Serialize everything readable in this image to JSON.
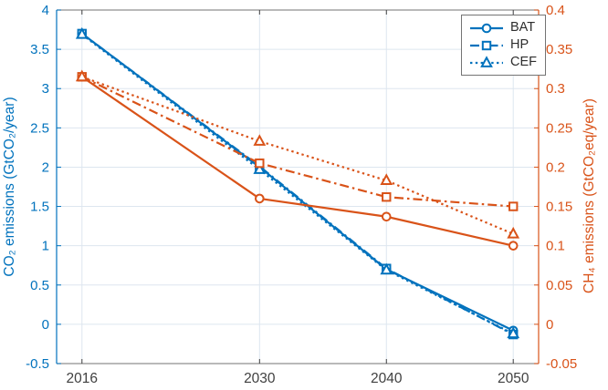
{
  "colors": {
    "left_axis": "#0072BD",
    "right_axis": "#D95319",
    "grid": "#dde6ef",
    "frame": "#8f8f8f",
    "x_tick": "#404040",
    "marker_fill": "#ffffff",
    "legend_border": "#747474",
    "background": "#ffffff"
  },
  "chart_data": {
    "type": "line",
    "x": [
      2016,
      2030,
      2040,
      2050
    ],
    "xlim": [
      2014,
      2052
    ],
    "x_ticks": [
      2016,
      2030,
      2040,
      2050
    ],
    "x_tick_labels": [
      "2016",
      "2030",
      "2040",
      "2050"
    ],
    "grid": true,
    "left_axis": {
      "label": "CO₂ emissions (GtCO₂/year)",
      "lim": [
        -0.5,
        4
      ],
      "ticks": [
        -0.5,
        0,
        0.5,
        1,
        1.5,
        2,
        2.5,
        3,
        3.5,
        4
      ],
      "color": "#0072BD"
    },
    "right_axis": {
      "label": "CH₄ emissions (GtCO₂eq/year)",
      "lim": [
        -0.05,
        0.4
      ],
      "ticks": [
        -0.05,
        0,
        0.05,
        0.1,
        0.15,
        0.2,
        0.25,
        0.3,
        0.35,
        0.4
      ],
      "color": "#D95319"
    },
    "series": [
      {
        "name": "BAT",
        "axis": "left",
        "quantity": "CO2 emissions",
        "line": "solid",
        "marker": "circle",
        "values": [
          3.7,
          2.0,
          0.7,
          -0.08
        ]
      },
      {
        "name": "HP",
        "axis": "left",
        "quantity": "CO2 emissions",
        "line": "dashdot",
        "marker": "square",
        "values": [
          3.7,
          2.01,
          0.71,
          -0.13
        ]
      },
      {
        "name": "CEF",
        "axis": "left",
        "quantity": "CO2 emissions",
        "line": "dotted",
        "marker": "triangle",
        "values": [
          3.69,
          1.97,
          0.69,
          -0.12
        ]
      },
      {
        "name": "BAT",
        "axis": "right",
        "quantity": "CH4 emissions",
        "line": "solid",
        "marker": "circle",
        "values": [
          0.315,
          0.16,
          0.137,
          0.1
        ]
      },
      {
        "name": "HP",
        "axis": "right",
        "quantity": "CH4 emissions",
        "line": "dashdot",
        "marker": "square",
        "values": [
          0.315,
          0.205,
          0.162,
          0.15
        ]
      },
      {
        "name": "CEF",
        "axis": "right",
        "quantity": "CH4 emissions",
        "line": "dotted",
        "marker": "triangle",
        "values": [
          0.315,
          0.233,
          0.183,
          0.115
        ]
      }
    ],
    "legend": {
      "position": "top-right",
      "items": [
        {
          "label": "BAT",
          "line": "solid",
          "marker": "circle"
        },
        {
          "label": "HP",
          "line": "dashdot",
          "marker": "square"
        },
        {
          "label": "CEF",
          "line": "dotted",
          "marker": "triangle"
        }
      ]
    }
  }
}
